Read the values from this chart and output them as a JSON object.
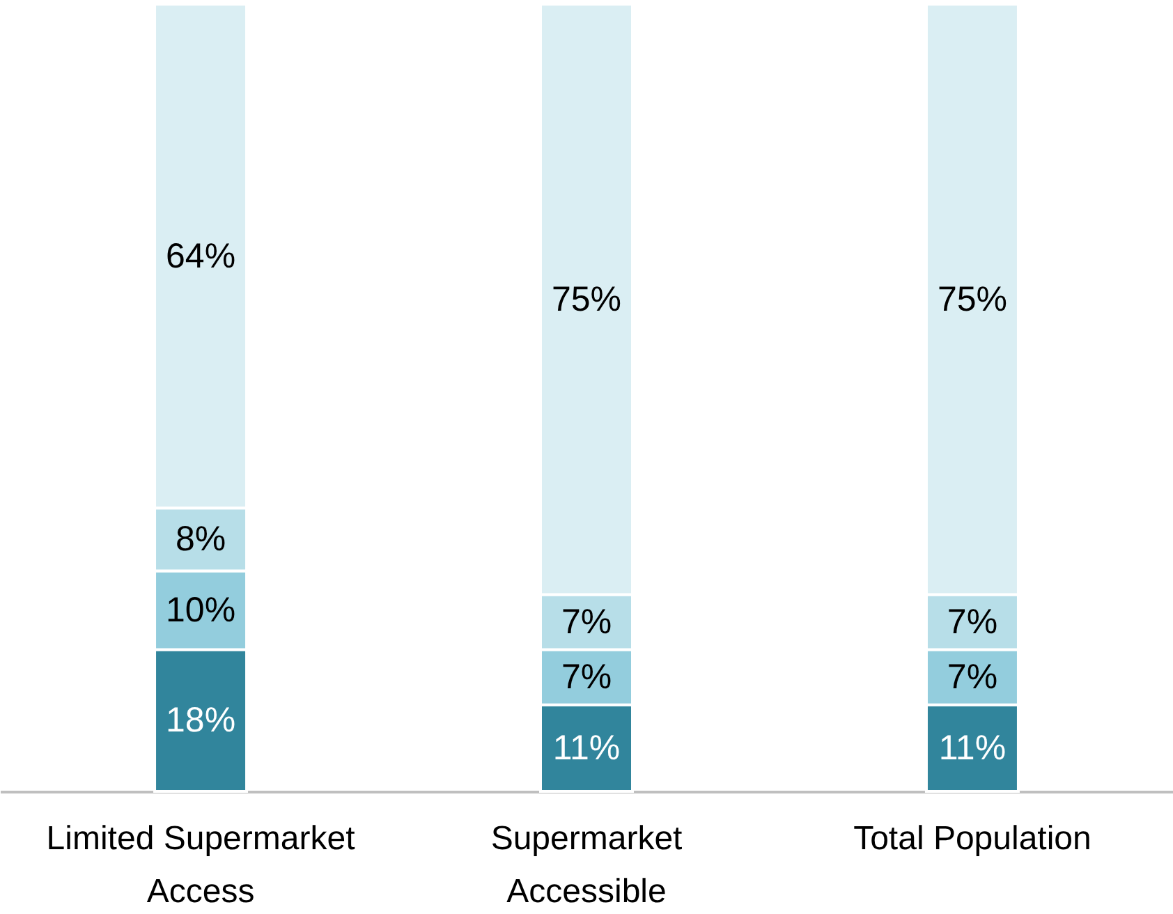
{
  "chart_data": {
    "type": "bar",
    "stacked": true,
    "categories": [
      "Limited Supermarket Access",
      "Supermarket Accessible",
      "Total Population"
    ],
    "series": [
      {
        "color": "#31859c",
        "values": [
          18,
          11,
          11
        ],
        "value_labels": [
          "18%",
          "11%",
          "11%"
        ]
      },
      {
        "color": "#93cddd",
        "values": [
          10,
          7,
          7
        ],
        "value_labels": [
          "10%",
          "7%",
          "7%"
        ]
      },
      {
        "color": "#b7dee8",
        "values": [
          8,
          7,
          7
        ],
        "value_labels": [
          "8%",
          "7%",
          "7%"
        ]
      },
      {
        "color": "#daeef3",
        "values": [
          64,
          75,
          75
        ],
        "value_labels": [
          "64%",
          "75%",
          "75%"
        ]
      }
    ]
  }
}
